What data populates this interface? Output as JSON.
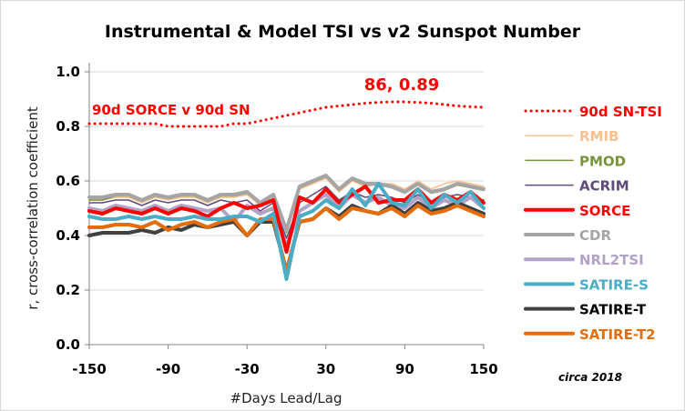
{
  "chart_data": {
    "type": "line",
    "title": "Instrumental & Model TSI vs v2 Sunspot Number",
    "xlabel": "#Days Lead/Lag",
    "ylabel": "r, cross-correlation coefficient",
    "xlim": [
      -150,
      150
    ],
    "ylim": [
      0.0,
      1.0
    ],
    "xticks": [
      "-150",
      "-90",
      "-30",
      "30",
      "90",
      "150"
    ],
    "yticks": [
      "0.0",
      "0.2",
      "0.4",
      "0.6",
      "0.8",
      "1.0"
    ],
    "grid": true,
    "legend_position": "right",
    "annotations": {
      "left": "90d SORCE v 90d SN",
      "peak": "86, 0.89",
      "note": "circa 2018"
    },
    "x": [
      -150,
      -140,
      -130,
      -120,
      -110,
      -100,
      -90,
      -80,
      -70,
      -60,
      -50,
      -40,
      -30,
      -20,
      -10,
      0,
      10,
      20,
      30,
      40,
      50,
      60,
      70,
      80,
      90,
      100,
      110,
      120,
      130,
      140,
      150
    ],
    "series": [
      {
        "name": "90d SN-TSI",
        "color": "#ff0000",
        "style": "dotted",
        "width": 3,
        "values": [
          0.81,
          0.81,
          0.81,
          0.81,
          0.81,
          0.81,
          0.8,
          0.8,
          0.8,
          0.8,
          0.8,
          0.81,
          0.81,
          0.82,
          0.83,
          0.84,
          0.85,
          0.86,
          0.87,
          0.875,
          0.88,
          0.885,
          0.888,
          0.89,
          0.89,
          0.888,
          0.885,
          0.88,
          0.875,
          0.872,
          0.87
        ]
      },
      {
        "name": "RMIB",
        "color": "#fac090",
        "style": "solid",
        "width": 1.5,
        "values": [
          0.53,
          0.53,
          0.54,
          0.54,
          0.52,
          0.54,
          0.53,
          0.54,
          0.54,
          0.52,
          0.54,
          0.54,
          0.55,
          0.51,
          0.54,
          0.41,
          0.57,
          0.59,
          0.61,
          0.56,
          0.6,
          0.58,
          0.59,
          0.59,
          0.57,
          0.6,
          0.57,
          0.59,
          0.6,
          0.59,
          0.58
        ]
      },
      {
        "name": "PMOD",
        "color": "#77933c",
        "style": "solid",
        "width": 1.5,
        "values": [
          0.53,
          0.53,
          0.545,
          0.545,
          0.525,
          0.545,
          0.535,
          0.545,
          0.545,
          0.525,
          0.545,
          0.545,
          0.555,
          0.515,
          0.545,
          0.41,
          0.575,
          0.595,
          0.615,
          0.565,
          0.605,
          0.585,
          0.585,
          0.575,
          0.555,
          0.585,
          0.555,
          0.565,
          0.585,
          0.575,
          0.565
        ]
      },
      {
        "name": "ACRIM",
        "color": "#604a7b",
        "style": "solid",
        "width": 1.5,
        "values": [
          0.52,
          0.52,
          0.53,
          0.53,
          0.51,
          0.53,
          0.52,
          0.53,
          0.53,
          0.51,
          0.53,
          0.52,
          0.53,
          0.49,
          0.52,
          0.39,
          0.52,
          0.55,
          0.58,
          0.53,
          0.56,
          0.54,
          0.55,
          0.54,
          0.52,
          0.55,
          0.52,
          0.54,
          0.55,
          0.54,
          0.53
        ]
      },
      {
        "name": "SORCE",
        "color": "#ff0000",
        "style": "solid",
        "width": 4,
        "values": [
          0.49,
          0.48,
          0.5,
          0.49,
          0.48,
          0.5,
          0.48,
          0.5,
          0.49,
          0.47,
          0.5,
          0.52,
          0.5,
          0.51,
          0.53,
          0.34,
          0.54,
          0.52,
          0.57,
          0.52,
          0.55,
          0.58,
          0.52,
          0.53,
          0.53,
          0.57,
          0.52,
          0.55,
          0.53,
          0.56,
          0.52
        ]
      },
      {
        "name": "CDR",
        "color": "#a5a5a5",
        "style": "solid",
        "width": 4,
        "values": [
          0.54,
          0.54,
          0.55,
          0.55,
          0.53,
          0.55,
          0.54,
          0.55,
          0.55,
          0.53,
          0.55,
          0.55,
          0.56,
          0.52,
          0.55,
          0.42,
          0.58,
          0.6,
          0.62,
          0.57,
          0.61,
          0.59,
          0.59,
          0.58,
          0.56,
          0.59,
          0.56,
          0.57,
          0.59,
          0.58,
          0.57
        ]
      },
      {
        "name": "NRL2TSI",
        "color": "#b3a2c7",
        "style": "solid",
        "width": 4,
        "values": [
          0.5,
          0.49,
          0.51,
          0.5,
          0.49,
          0.51,
          0.49,
          0.51,
          0.5,
          0.49,
          0.5,
          0.45,
          0.51,
          0.48,
          0.5,
          0.36,
          0.49,
          0.52,
          0.55,
          0.5,
          0.55,
          0.52,
          0.54,
          0.51,
          0.5,
          0.54,
          0.5,
          0.53,
          0.51,
          0.54,
          0.5
        ]
      },
      {
        "name": "SATIRE-S",
        "color": "#4bacc6",
        "style": "solid",
        "width": 4,
        "values": [
          0.47,
          0.46,
          0.46,
          0.47,
          0.46,
          0.47,
          0.46,
          0.46,
          0.47,
          0.46,
          0.46,
          0.47,
          0.47,
          0.45,
          0.48,
          0.24,
          0.47,
          0.49,
          0.53,
          0.5,
          0.57,
          0.51,
          0.59,
          0.52,
          0.51,
          0.57,
          0.5,
          0.55,
          0.52,
          0.56,
          0.5
        ]
      },
      {
        "name": "SATIRE-T",
        "color": "#404040",
        "style": "solid",
        "width": 4,
        "values": [
          0.4,
          0.41,
          0.41,
          0.41,
          0.42,
          0.41,
          0.43,
          0.42,
          0.44,
          0.43,
          0.44,
          0.45,
          0.4,
          0.45,
          0.45,
          0.27,
          0.45,
          0.46,
          0.5,
          0.47,
          0.51,
          0.49,
          0.48,
          0.51,
          0.48,
          0.52,
          0.49,
          0.5,
          0.52,
          0.5,
          0.48
        ]
      },
      {
        "name": "SATIRE-T2",
        "color": "#e46c0a",
        "style": "solid",
        "width": 4,
        "values": [
          0.43,
          0.43,
          0.44,
          0.44,
          0.43,
          0.45,
          0.42,
          0.44,
          0.45,
          0.43,
          0.45,
          0.46,
          0.4,
          0.46,
          0.46,
          0.27,
          0.45,
          0.46,
          0.5,
          0.46,
          0.5,
          0.49,
          0.48,
          0.5,
          0.47,
          0.51,
          0.48,
          0.49,
          0.51,
          0.49,
          0.47
        ]
      }
    ]
  }
}
